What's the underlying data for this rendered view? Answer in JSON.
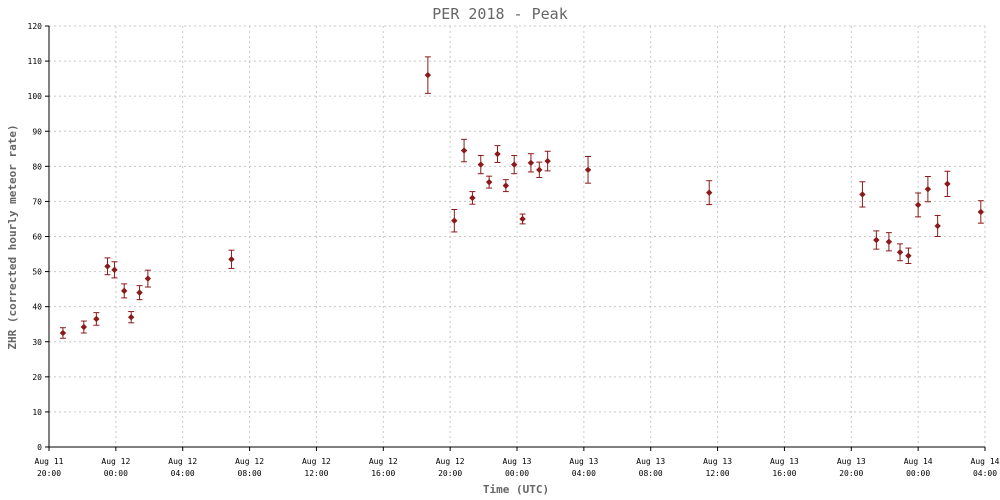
{
  "chart_data": {
    "type": "scatter",
    "title": "PER 2018 - Peak",
    "xlabel": "Time (UTC)",
    "ylabel": "ZHR (corrected hourly meteor rate)",
    "ylim": [
      0,
      120
    ],
    "yticks": [
      0,
      10,
      20,
      30,
      40,
      50,
      60,
      70,
      80,
      90,
      100,
      110,
      120
    ],
    "xlim": [
      "2018-08-11 20:00",
      "2018-08-14 04:00"
    ],
    "xticks": [
      {
        "value": "2018-08-11 20:00",
        "line1": "Aug 11",
        "line2": "20:00"
      },
      {
        "value": "2018-08-12 00:00",
        "line1": "Aug 12",
        "line2": "00:00"
      },
      {
        "value": "2018-08-12 04:00",
        "line1": "Aug 12",
        "line2": "04:00"
      },
      {
        "value": "2018-08-12 08:00",
        "line1": "Aug 12",
        "line2": "08:00"
      },
      {
        "value": "2018-08-12 12:00",
        "line1": "Aug 12",
        "line2": "12:00"
      },
      {
        "value": "2018-08-12 16:00",
        "line1": "Aug 12",
        "line2": "16:00"
      },
      {
        "value": "2018-08-12 20:00",
        "line1": "Aug 12",
        "line2": "20:00"
      },
      {
        "value": "2018-08-13 00:00",
        "line1": "Aug 13",
        "line2": "00:00"
      },
      {
        "value": "2018-08-13 04:00",
        "line1": "Aug 13",
        "line2": "04:00"
      },
      {
        "value": "2018-08-13 08:00",
        "line1": "Aug 13",
        "line2": "08:00"
      },
      {
        "value": "2018-08-13 12:00",
        "line1": "Aug 13",
        "line2": "12:00"
      },
      {
        "value": "2018-08-13 16:00",
        "line1": "Aug 13",
        "line2": "16:00"
      },
      {
        "value": "2018-08-13 20:00",
        "line1": "Aug 13",
        "line2": "20:00"
      },
      {
        "value": "2018-08-14 00:00",
        "line1": "Aug 14",
        "line2": "00:00"
      },
      {
        "value": "2018-08-14 04:00",
        "line1": "Aug 14",
        "line2": "04:00"
      }
    ],
    "grid": true,
    "color": "#8b1a1a",
    "points": [
      {
        "x": "2018-08-11 20:50",
        "y": 32.5,
        "err": 1.5
      },
      {
        "x": "2018-08-11 22:05",
        "y": 34.2,
        "err": 1.7
      },
      {
        "x": "2018-08-11 22:50",
        "y": 36.5,
        "err": 1.8
      },
      {
        "x": "2018-08-11 23:30",
        "y": 51.5,
        "err": 2.4
      },
      {
        "x": "2018-08-11 23:55",
        "y": 50.5,
        "err": 2.3
      },
      {
        "x": "2018-08-12 00:30",
        "y": 44.5,
        "err": 2.0
      },
      {
        "x": "2018-08-12 00:55",
        "y": 37.0,
        "err": 1.6
      },
      {
        "x": "2018-08-12 01:25",
        "y": 44.0,
        "err": 2.0
      },
      {
        "x": "2018-08-12 01:55",
        "y": 48.0,
        "err": 2.4
      },
      {
        "x": "2018-08-12 06:55",
        "y": 53.5,
        "err": 2.6
      },
      {
        "x": "2018-08-12 18:40",
        "y": 106.0,
        "err": 5.2
      },
      {
        "x": "2018-08-12 20:15",
        "y": 64.5,
        "err": 3.2
      },
      {
        "x": "2018-08-12 20:50",
        "y": 84.5,
        "err": 3.2
      },
      {
        "x": "2018-08-12 21:20",
        "y": 71.0,
        "err": 1.8
      },
      {
        "x": "2018-08-12 21:50",
        "y": 80.5,
        "err": 2.6
      },
      {
        "x": "2018-08-12 22:20",
        "y": 75.5,
        "err": 1.7
      },
      {
        "x": "2018-08-12 22:50",
        "y": 83.5,
        "err": 2.4
      },
      {
        "x": "2018-08-12 23:20",
        "y": 74.5,
        "err": 1.7
      },
      {
        "x": "2018-08-12 23:50",
        "y": 80.5,
        "err": 2.6
      },
      {
        "x": "2018-08-13 00:20",
        "y": 65.0,
        "err": 1.4
      },
      {
        "x": "2018-08-13 00:50",
        "y": 81.0,
        "err": 2.6
      },
      {
        "x": "2018-08-13 01:20",
        "y": 79.0,
        "err": 2.2
      },
      {
        "x": "2018-08-13 01:50",
        "y": 81.5,
        "err": 2.8
      },
      {
        "x": "2018-08-13 04:15",
        "y": 79.0,
        "err": 3.8
      },
      {
        "x": "2018-08-13 11:30",
        "y": 72.5,
        "err": 3.4
      },
      {
        "x": "2018-08-13 20:40",
        "y": 72.0,
        "err": 3.6
      },
      {
        "x": "2018-08-13 21:30",
        "y": 59.0,
        "err": 2.6
      },
      {
        "x": "2018-08-13 22:15",
        "y": 58.5,
        "err": 2.6
      },
      {
        "x": "2018-08-13 22:55",
        "y": 55.5,
        "err": 2.4
      },
      {
        "x": "2018-08-13 23:25",
        "y": 54.5,
        "err": 2.2
      },
      {
        "x": "2018-08-14 00:00",
        "y": 69.0,
        "err": 3.4
      },
      {
        "x": "2018-08-14 00:35",
        "y": 73.5,
        "err": 3.6
      },
      {
        "x": "2018-08-14 01:10",
        "y": 63.0,
        "err": 3.0
      },
      {
        "x": "2018-08-14 01:45",
        "y": 75.0,
        "err": 3.6
      },
      {
        "x": "2018-08-14 03:45",
        "y": 67.0,
        "err": 3.2
      }
    ]
  }
}
